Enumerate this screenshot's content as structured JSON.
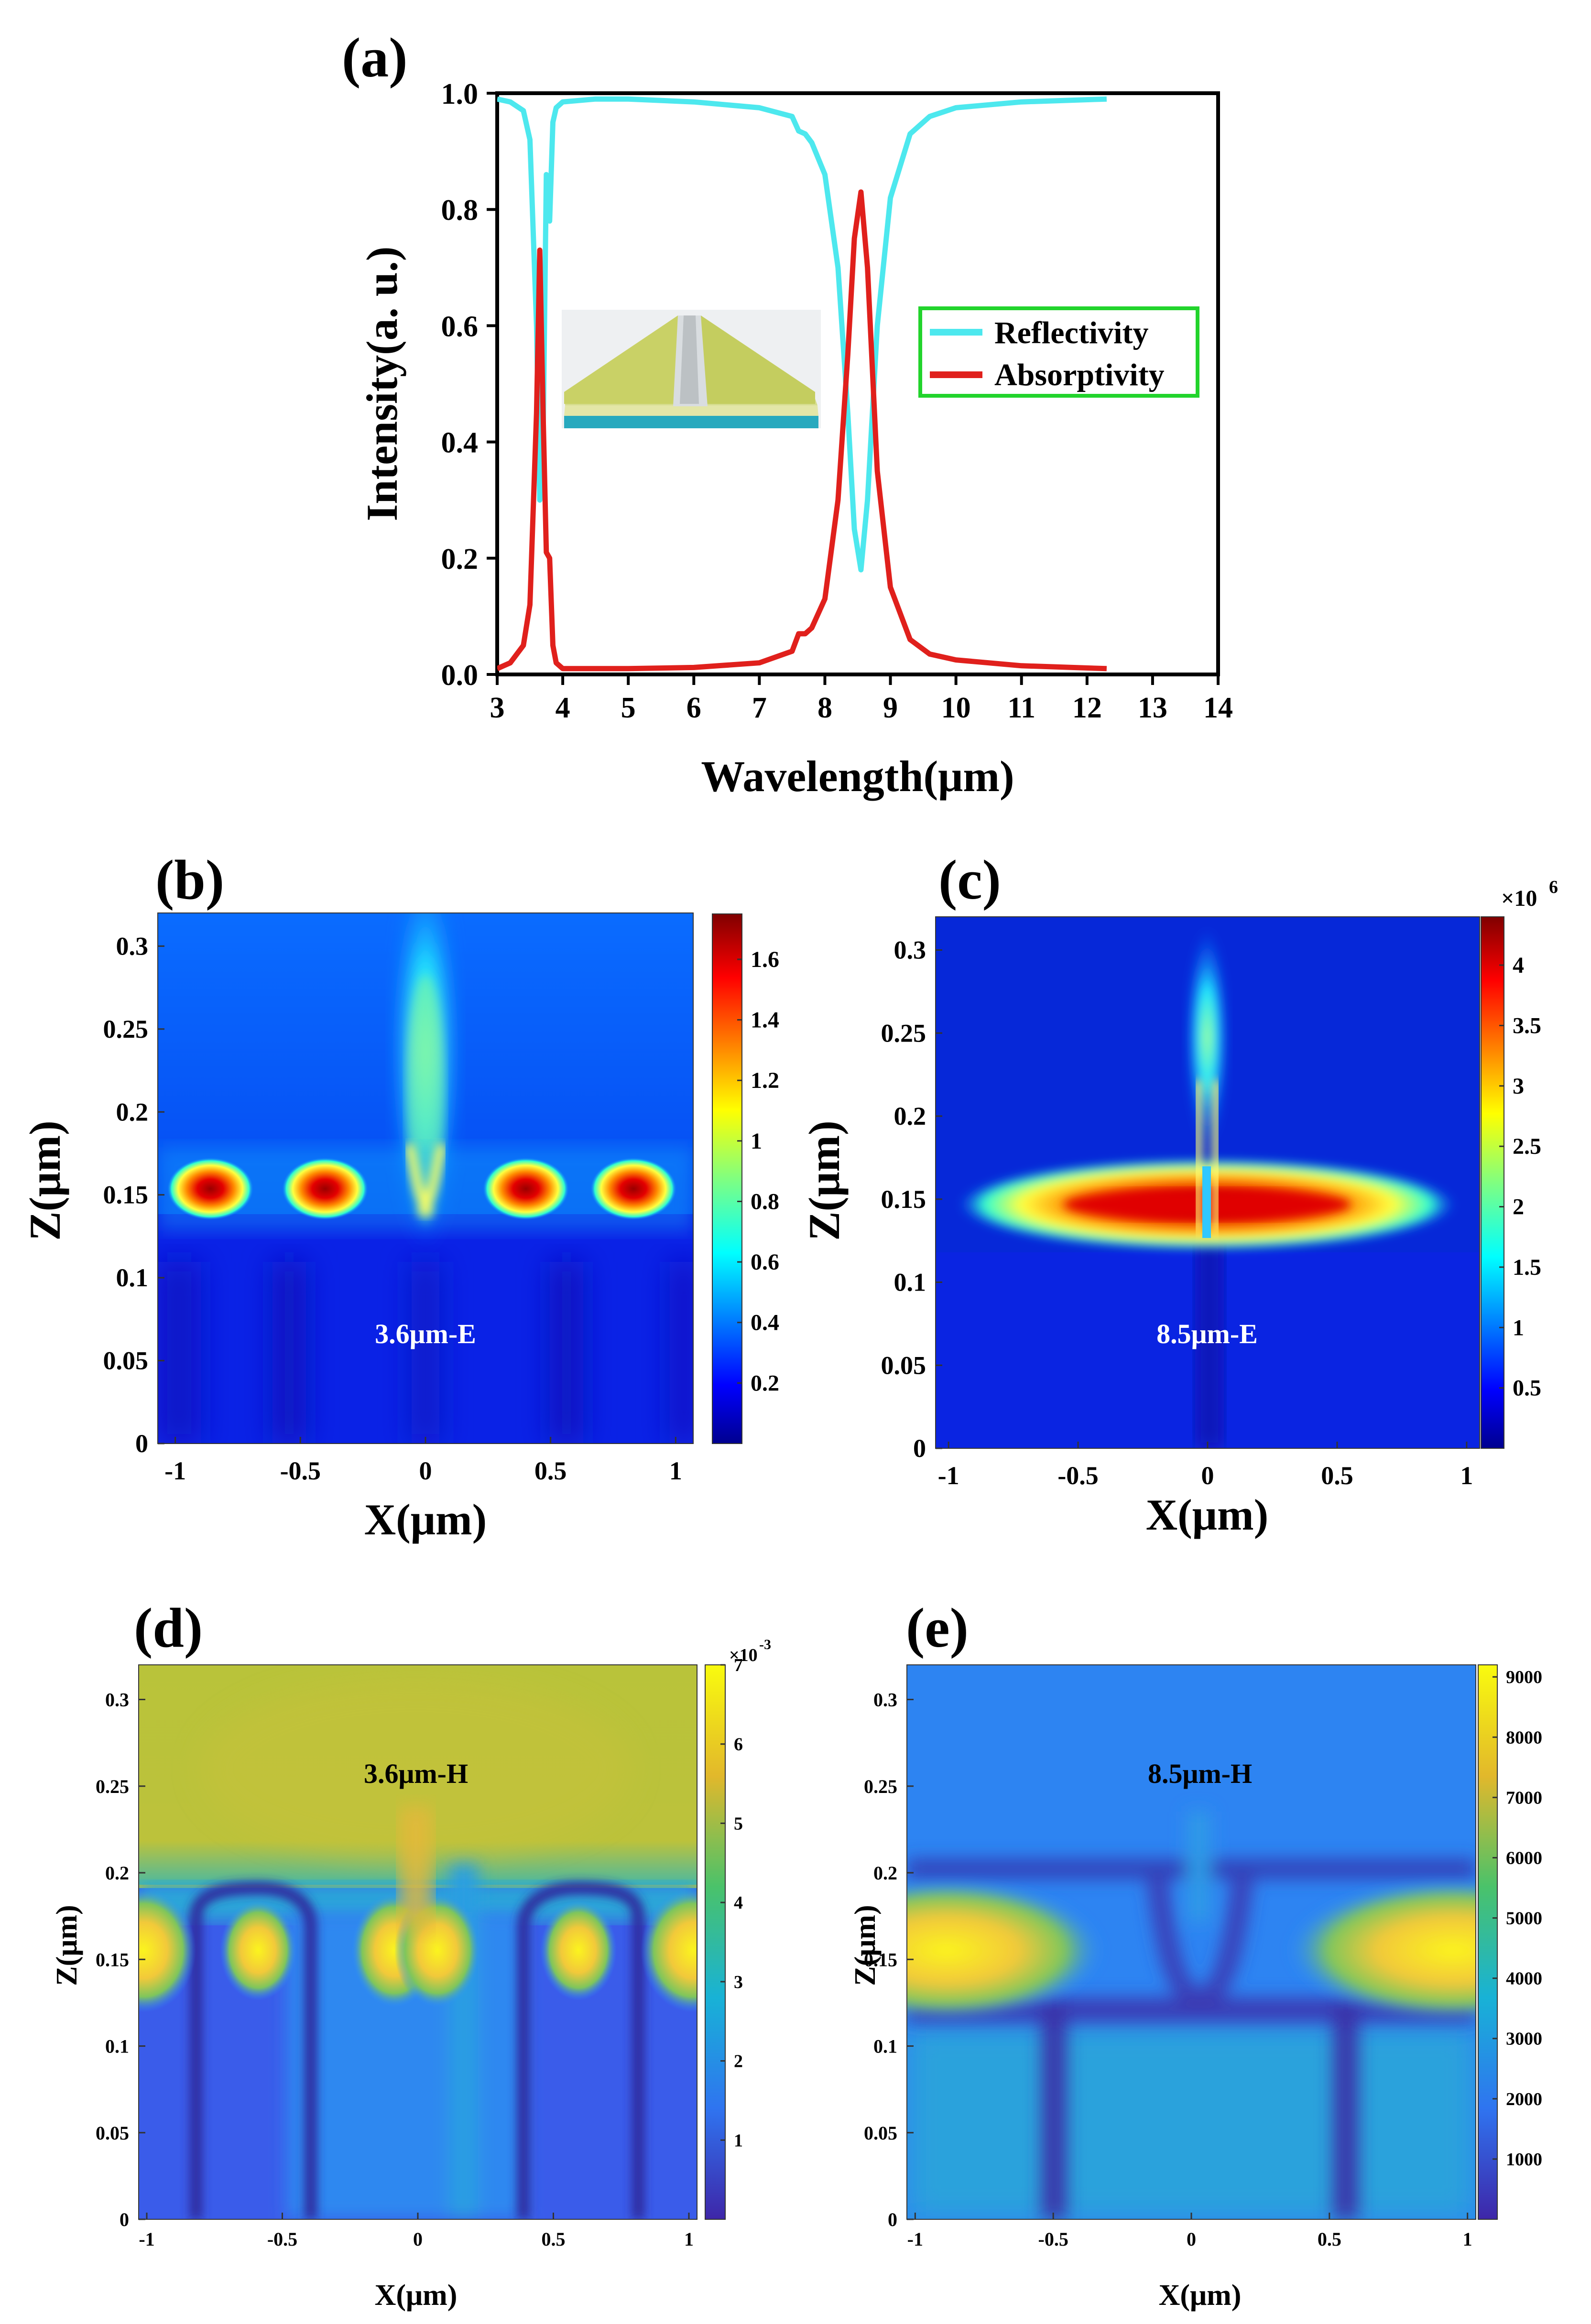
{
  "figure": {
    "panels": {
      "a": "(a)",
      "b": "(b)",
      "c": "(c)",
      "d": "(d)",
      "e": "(e)"
    }
  },
  "colors": {
    "reflectivity": "#4de8ee",
    "absorptivity": "#e0201c",
    "legend_border": "#22d42c"
  },
  "chart_data": [
    {
      "id": "a",
      "type": "line",
      "title": "",
      "xlabel": "Wavelength(μm)",
      "ylabel": "Intensity(a. u.)",
      "xlim": [
        3,
        14
      ],
      "ylim": [
        0.0,
        1.0
      ],
      "xticks": [
        "3",
        "4",
        "5",
        "6",
        "7",
        "8",
        "9",
        "10",
        "11",
        "12",
        "13",
        "14"
      ],
      "yticks": [
        "0.0",
        "0.2",
        "0.4",
        "0.6",
        "0.8",
        "1.0"
      ],
      "legend_position": "right-middle",
      "inset": "3D schematic of the grating structure (yellow metal strips on a cyan substrate)",
      "series": [
        {
          "name": "Reflectivity",
          "x": [
            3.0,
            3.2,
            3.4,
            3.5,
            3.6,
            3.65,
            3.7,
            3.75,
            3.8,
            3.85,
            3.9,
            4.0,
            4.5,
            5.0,
            6.0,
            7.0,
            7.5,
            7.6,
            7.7,
            7.8,
            8.0,
            8.2,
            8.35,
            8.45,
            8.55,
            8.65,
            8.8,
            9.0,
            9.3,
            9.6,
            10.0,
            11.0,
            12.3
          ],
          "values": [
            0.99,
            0.985,
            0.97,
            0.92,
            0.6,
            0.3,
            0.4,
            0.86,
            0.78,
            0.95,
            0.975,
            0.985,
            0.99,
            0.99,
            0.985,
            0.975,
            0.96,
            0.935,
            0.93,
            0.915,
            0.86,
            0.7,
            0.45,
            0.25,
            0.18,
            0.3,
            0.6,
            0.82,
            0.93,
            0.96,
            0.975,
            0.985,
            0.99
          ]
        },
        {
          "name": "Absorptivity",
          "x": [
            3.0,
            3.2,
            3.4,
            3.5,
            3.6,
            3.65,
            3.7,
            3.75,
            3.8,
            3.85,
            3.9,
            4.0,
            4.5,
            5.0,
            6.0,
            7.0,
            7.5,
            7.6,
            7.7,
            7.8,
            8.0,
            8.2,
            8.35,
            8.45,
            8.55,
            8.65,
            8.8,
            9.0,
            9.3,
            9.6,
            10.0,
            11.0,
            12.3
          ],
          "values": [
            0.01,
            0.02,
            0.05,
            0.12,
            0.45,
            0.73,
            0.45,
            0.21,
            0.2,
            0.05,
            0.02,
            0.01,
            0.01,
            0.01,
            0.012,
            0.02,
            0.04,
            0.07,
            0.07,
            0.08,
            0.13,
            0.3,
            0.55,
            0.75,
            0.83,
            0.7,
            0.35,
            0.15,
            0.06,
            0.035,
            0.025,
            0.015,
            0.01
          ]
        }
      ]
    },
    {
      "id": "b",
      "type": "heatmap",
      "xlabel": "X(μm)",
      "ylabel": "Z(μm)",
      "xticks": [
        "-1",
        "-0.5",
        "0",
        "0.5",
        "1"
      ],
      "yticks": [
        "0",
        "0.05",
        "0.1",
        "0.15",
        "0.2",
        "0.25",
        "0.3"
      ],
      "colorbar_ticks": [
        "0.2",
        "0.4",
        "0.6",
        "0.8",
        "1",
        "1.2",
        "1.4",
        "1.6"
      ],
      "colorbar_range": [
        0.0,
        1.75
      ],
      "annotation": "3.6μm-E"
    },
    {
      "id": "c",
      "type": "heatmap",
      "xlabel": "X(μm)",
      "ylabel": "Z(μm)",
      "xticks": [
        "-1",
        "-0.5",
        "0",
        "0.5",
        "1"
      ],
      "yticks": [
        "0",
        "0.05",
        "0.1",
        "0.15",
        "0.2",
        "0.25",
        "0.3"
      ],
      "colorbar_ticks": [
        "0.5",
        "1",
        "1.5",
        "2",
        "2.5",
        "3",
        "3.5",
        "4"
      ],
      "colorbar_range": [
        0.0,
        4.4
      ],
      "colorbar_multiplier": "×10",
      "colorbar_exponent": "6",
      "annotation": "8.5μm-E"
    },
    {
      "id": "d",
      "type": "heatmap",
      "xlabel": "X(μm)",
      "ylabel": "Z(μm)",
      "xticks": [
        "-1",
        "-0.5",
        "0",
        "0.5",
        "1"
      ],
      "yticks": [
        "0",
        "0.05",
        "0.1",
        "0.15",
        "0.2",
        "0.25",
        "0.3"
      ],
      "colorbar_ticks": [
        "1",
        "2",
        "3",
        "4",
        "5",
        "6",
        "7"
      ],
      "colorbar_range": [
        0.0,
        7.0
      ],
      "colorbar_multiplier": "×10",
      "colorbar_exponent": "-3",
      "annotation": "3.6μm-H"
    },
    {
      "id": "e",
      "type": "heatmap",
      "xlabel": "X(μm)",
      "ylabel": "Z(μm)",
      "xticks": [
        "-1",
        "-0.5",
        "0",
        "0.5",
        "1"
      ],
      "yticks": [
        "0",
        "0.05",
        "0.1",
        "0.15",
        "0.2",
        "0.25",
        "0.3"
      ],
      "colorbar_ticks": [
        "1000",
        "2000",
        "3000",
        "4000",
        "5000",
        "6000",
        "7000",
        "8000",
        "9000"
      ],
      "colorbar_range": [
        0,
        9200
      ],
      "annotation": "8.5μm-H"
    }
  ]
}
